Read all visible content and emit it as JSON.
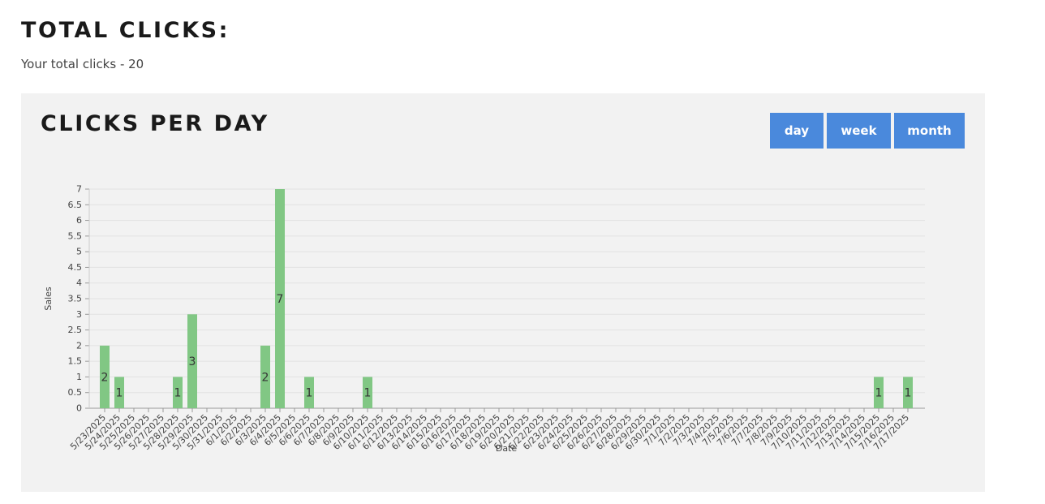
{
  "header": {
    "total_title": "TOTAL CLICKS:",
    "total_text": "Your total clicks - 20"
  },
  "panel": {
    "title": "CLICKS PER DAY",
    "buttons": {
      "day": "day",
      "week": "week",
      "month": "month"
    }
  },
  "colors": {
    "bar": "#81c784",
    "button": "#4a89dc",
    "panel_bg": "#f2f2f2"
  },
  "chart_data": {
    "type": "bar",
    "title": "",
    "xlabel": "Date",
    "ylabel": "Sales",
    "ylim": [
      0,
      7
    ],
    "yticks": [
      "0",
      "0.5",
      "1",
      "1.5",
      "2",
      "2.5",
      "3",
      "3.5",
      "4",
      "4.5",
      "5",
      "5.5",
      "6",
      "6.5",
      "7"
    ],
    "grid": true,
    "categories": [
      "5/23/2025",
      "5/24/2025",
      "5/25/2025",
      "5/26/2025",
      "5/27/2025",
      "5/28/2025",
      "5/29/2025",
      "5/30/2025",
      "5/31/2025",
      "6/1/2025",
      "6/2/2025",
      "6/3/2025",
      "6/4/2025",
      "6/5/2025",
      "6/6/2025",
      "6/7/2025",
      "6/8/2025",
      "6/9/2025",
      "6/10/2025",
      "6/11/2025",
      "6/12/2025",
      "6/13/2025",
      "6/14/2025",
      "6/15/2025",
      "6/16/2025",
      "6/17/2025",
      "6/18/2025",
      "6/19/2025",
      "6/20/2025",
      "6/21/2025",
      "6/22/2025",
      "6/23/2025",
      "6/24/2025",
      "6/25/2025",
      "6/26/2025",
      "6/27/2025",
      "6/28/2025",
      "6/29/2025",
      "6/30/2025",
      "7/1/2025",
      "7/2/2025",
      "7/3/2025",
      "7/4/2025",
      "7/5/2025",
      "7/6/2025",
      "7/7/2025",
      "7/8/2025",
      "7/9/2025",
      "7/10/2025",
      "7/11/2025",
      "7/12/2025",
      "7/13/2025",
      "7/14/2025",
      "7/15/2025",
      "7/16/2025",
      "7/17/2025"
    ],
    "values": [
      2,
      1,
      0,
      0,
      0,
      1,
      3,
      0,
      0,
      0,
      0,
      2,
      7,
      0,
      1,
      0,
      0,
      0,
      1,
      0,
      0,
      0,
      0,
      0,
      0,
      0,
      0,
      0,
      0,
      0,
      0,
      0,
      0,
      0,
      0,
      0,
      0,
      0,
      0,
      0,
      0,
      0,
      0,
      0,
      0,
      0,
      0,
      0,
      0,
      0,
      0,
      0,
      0,
      1,
      0,
      1
    ]
  }
}
